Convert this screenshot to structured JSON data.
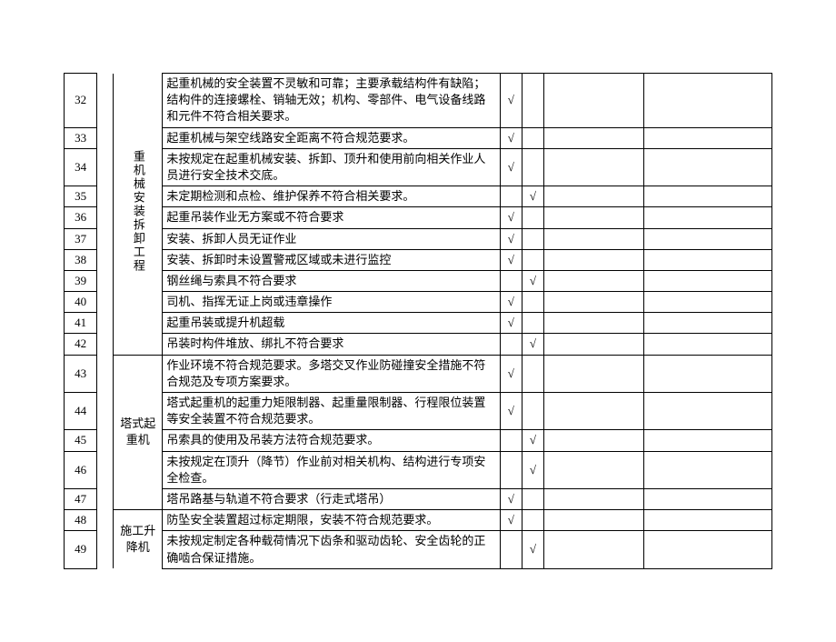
{
  "check": "√",
  "categories": {
    "c1": "重机械安装拆卸工程",
    "c2": "塔式起重机",
    "c3": "施工升降机"
  },
  "rows": [
    {
      "n": "32",
      "desc": "起重机械的安全装置不灵敏和可靠；主要承载结构件有缺陷；结构件的连接螺栓、销轴无效；机构、零部件、电气设备线路和元件不符合相关要求。",
      "c": [
        1,
        0
      ]
    },
    {
      "n": "33",
      "desc": "起重机械与架空线路安全距离不符合规范要求。",
      "c": [
        1,
        0
      ]
    },
    {
      "n": "34",
      "desc": "未按规定在起重机械安装、拆卸、顶升和使用前向相关作业人员进行安全技术交底。",
      "c": [
        1,
        0
      ]
    },
    {
      "n": "35",
      "desc": "未定期检测和点检、维护保养不符合相关要求。",
      "c": [
        0,
        1
      ]
    },
    {
      "n": "36",
      "desc": "起重吊装作业无方案或不符合要求",
      "c": [
        1,
        0
      ]
    },
    {
      "n": "37",
      "desc": "安装、拆卸人员无证作业",
      "c": [
        1,
        0
      ]
    },
    {
      "n": "38",
      "desc": "安装、拆卸时未设置警戒区域或未进行监控",
      "c": [
        1,
        0
      ]
    },
    {
      "n": "39",
      "desc": "钢丝绳与索具不符合要求",
      "c": [
        0,
        1
      ]
    },
    {
      "n": "40",
      "desc": "司机、指挥无证上岗或违章操作",
      "c": [
        1,
        0
      ]
    },
    {
      "n": "41",
      "desc": "起重吊装或提升机超载",
      "c": [
        1,
        0
      ]
    },
    {
      "n": "42",
      "desc": "吊装时构件堆放、绑扎不符合要求",
      "c": [
        0,
        1
      ]
    },
    {
      "n": "43",
      "desc": "作业环境不符合规范要求。多塔交叉作业防碰撞安全措施不符合规范及专项方案要求。",
      "c": [
        1,
        0
      ]
    },
    {
      "n": "44",
      "desc": "塔式起重机的起重力矩限制器、起重量限制器、行程限位装置等安全装置不符合规范要求。",
      "c": [
        1,
        0
      ]
    },
    {
      "n": "45",
      "desc": "吊索具的使用及吊装方法符合规范要求。",
      "c": [
        0,
        1
      ]
    },
    {
      "n": "46",
      "desc": "未按规定在顶升（降节）作业前对相关机构、结构进行专项安全检查。",
      "c": [
        0,
        1
      ]
    },
    {
      "n": "47",
      "desc": "塔吊路基与轨道不符合要求（行走式塔吊）",
      "c": [
        1,
        0
      ]
    },
    {
      "n": "48",
      "desc": "防坠安全装置超过标定期限，安装不符合规范要求。",
      "c": [
        1,
        0
      ]
    },
    {
      "n": "49",
      "desc": "未按规定制定各种载荷情况下齿条和驱动齿轮、安全齿轮的正确啮合保证措施。",
      "c": [
        0,
        1
      ]
    }
  ],
  "colors": {
    "bg": "#ffffff",
    "border": "#000000",
    "text": "#000000"
  }
}
